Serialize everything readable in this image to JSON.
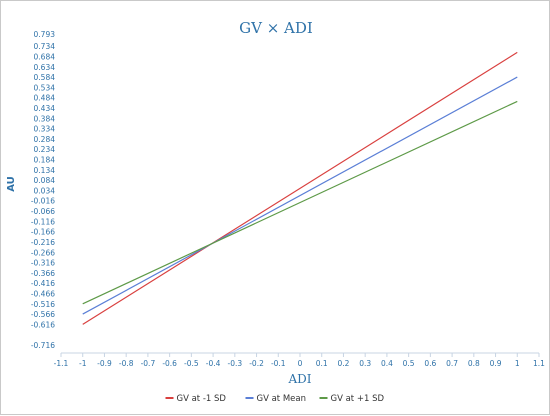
{
  "chart_data": {
    "type": "line",
    "title": "GV × ADI",
    "xlabel": "ADI",
    "ylabel": "AU",
    "xlim": [
      -1.1,
      1.1
    ],
    "ylim": [
      -0.716,
      0.793
    ],
    "x_ticks": [
      "-1.1",
      "-1",
      "-0.9",
      "-0.8",
      "-0.7",
      "-0.6",
      "-0.5",
      "-0.4",
      "-0.3",
      "-0.2",
      "-0.1",
      "0",
      "0.1",
      "0.2",
      "0.3",
      "0.4",
      "0.5",
      "0.6",
      "0.7",
      "0.8",
      "0.9",
      "1",
      "1.1"
    ],
    "y_ticks": [
      "0.793",
      "0.734",
      "0.684",
      "0.634",
      "0.584",
      "0.534",
      "0.484",
      "0.434",
      "0.384",
      "0.334",
      "0.284",
      "0.234",
      "0.184",
      "0.134",
      "0.084",
      "0.034",
      "-0.016",
      "-0.066",
      "-0.116",
      "-0.166",
      "-0.216",
      "-0.266",
      "-0.316",
      "-0.366",
      "-0.416",
      "-0.466",
      "-0.516",
      "-0.566",
      "-0.616",
      "-0.716"
    ],
    "grid": false,
    "legend_position": "bottom",
    "series": [
      {
        "name": "GV at -1 SD",
        "color": "#d9403f",
        "x": [
          -1,
          1
        ],
        "y": [
          -0.616,
          0.704
        ]
      },
      {
        "name": "GV at Mean",
        "color": "#5b7fd6",
        "x": [
          -1,
          1
        ],
        "y": [
          -0.566,
          0.584
        ]
      },
      {
        "name": "GV at +1 SD",
        "color": "#5e9a48",
        "x": [
          -1,
          1
        ],
        "y": [
          -0.516,
          0.466
        ]
      }
    ]
  }
}
